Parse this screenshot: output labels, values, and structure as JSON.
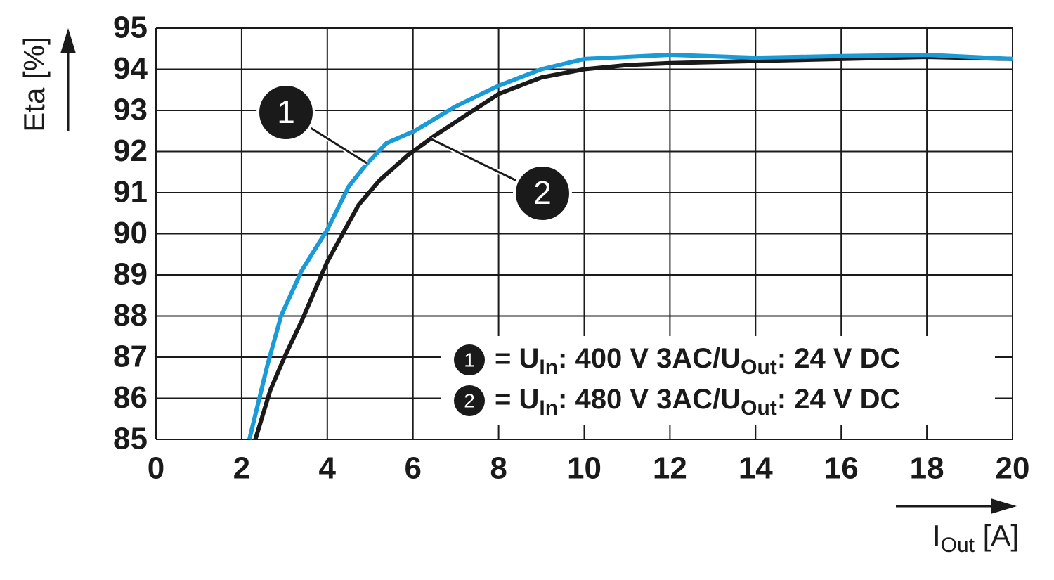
{
  "chart_data": {
    "type": "line",
    "y_label": "Eta [%]",
    "x_label": [
      "I",
      "Out",
      " [A]"
    ],
    "xlim": [
      0,
      20
    ],
    "xticks": [
      0,
      2,
      4,
      6,
      8,
      10,
      12,
      14,
      16,
      18,
      20
    ],
    "ylim": [
      85,
      95
    ],
    "yticks": [
      85,
      86,
      87,
      88,
      89,
      90,
      91,
      92,
      93,
      94,
      95
    ],
    "grid": true,
    "legend": "lower right",
    "series": [
      {
        "marker": "1",
        "name": [
          "= U",
          "In",
          ": 400 V 3AC/U",
          "Out",
          ": 24 V DC"
        ],
        "color": "#1a9ad6",
        "x": [
          2.18,
          2.6,
          2.92,
          3.4,
          4.0,
          4.5,
          4.92,
          5.38,
          6.04,
          7.0,
          8.0,
          9.0,
          10,
          12,
          14,
          16,
          18,
          20
        ],
        "values": [
          85,
          86.8,
          88.0,
          89.1,
          90.1,
          91.15,
          91.7,
          92.2,
          92.5,
          93.1,
          93.6,
          94.0,
          94.25,
          94.35,
          94.28,
          94.32,
          94.35,
          94.25
        ]
      },
      {
        "marker": "2",
        "name": [
          "= U",
          "In",
          ": 480 V 3AC/U",
          "Out",
          ": 24 V DC"
        ],
        "color": "#1a1a1a",
        "x": [
          2.32,
          2.67,
          3.0,
          3.41,
          3.99,
          4.73,
          5.22,
          5.87,
          6.53,
          7.19,
          8.0,
          9.0,
          10,
          11,
          12,
          14,
          16,
          18,
          20
        ],
        "values": [
          85,
          86.2,
          87.0,
          87.9,
          89.3,
          90.7,
          91.3,
          91.9,
          92.4,
          92.85,
          93.4,
          93.8,
          94.0,
          94.1,
          94.15,
          94.2,
          94.25,
          94.3,
          94.25
        ]
      }
    ]
  }
}
